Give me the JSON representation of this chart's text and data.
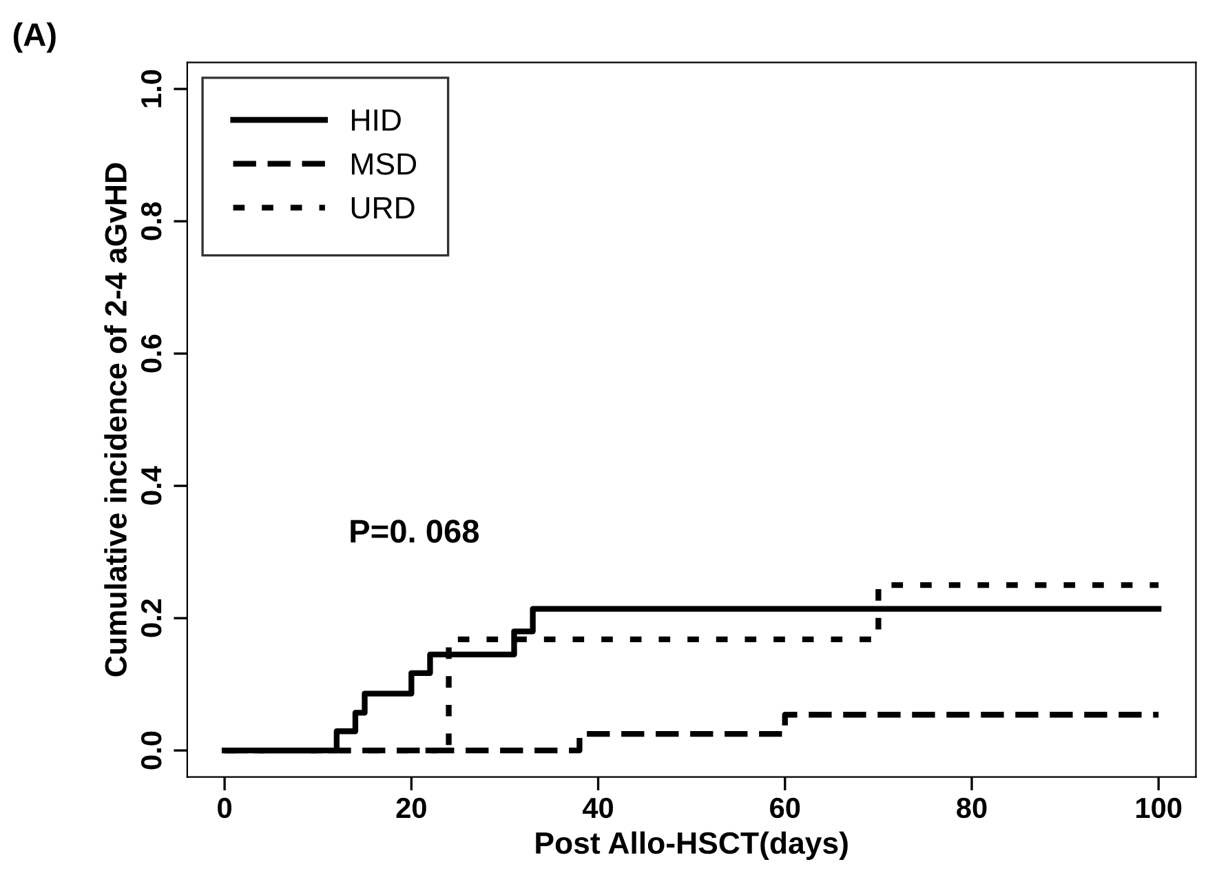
{
  "chart_data": {
    "type": "step",
    "title": "(A)",
    "xlabel": "Post Allo-HSCT(days)",
    "ylabel": "Cumulative incidence of 2-4 aGvHD",
    "series": [
      {
        "name": "HID",
        "color": "#000000",
        "line_style": "solid",
        "x": [
          0,
          12,
          14,
          15,
          20,
          22,
          31,
          33,
          100
        ],
        "values": [
          0,
          0.029,
          0.057,
          0.086,
          0.117,
          0.145,
          0.18,
          0.214,
          0.214
        ]
      },
      {
        "name": "MSD",
        "color": "#000000",
        "line_style": "dashed",
        "x": [
          0,
          38,
          60,
          100
        ],
        "values": [
          0,
          0.025,
          0.054,
          0.054
        ]
      },
      {
        "name": "URD",
        "color": "#000000",
        "line_style": "dotted",
        "x": [
          0,
          24,
          70,
          100
        ],
        "values": [
          0,
          0.168,
          0.25,
          0.25
        ]
      }
    ],
    "annotations": [
      "P=0. 068"
    ],
    "xlim": [
      -4,
      104
    ],
    "ylim": [
      -0.04,
      1.04
    ],
    "xticks": [
      0,
      20,
      40,
      60,
      80,
      100
    ],
    "yticks": [
      {
        "value": 0,
        "label": "0.0"
      },
      {
        "value": 0.2,
        "label": "0.2"
      },
      {
        "value": 0.4,
        "label": "0.4"
      },
      {
        "value": 0.6,
        "label": "0.6"
      },
      {
        "value": 0.8,
        "label": "0.8"
      },
      {
        "value": 1,
        "label": "1.0"
      }
    ],
    "legend": "top left",
    "grid": false
  }
}
